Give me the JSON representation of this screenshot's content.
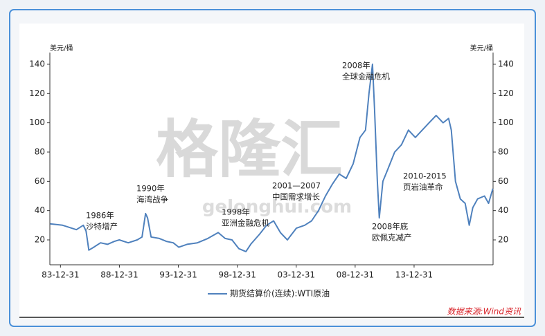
{
  "chart_data": {
    "type": "line",
    "watermark": "格隆汇",
    "watermark_url": "gelonghui.com",
    "ylabel": "美元/桶",
    "y2label": "美元/桶",
    "source": "数据来源:Wind资讯",
    "x": [
      1983.12,
      1984.18,
      1985.35,
      1985.94,
      1986.17,
      1986.41,
      1986.82,
      1987.4,
      1987.99,
      1988.58,
      1988.99,
      1989.75,
      1990.51,
      1990.92,
      1991.22,
      1991.39,
      1991.69,
      1992.39,
      1992.98,
      1993.57,
      1994.04,
      1994.74,
      1995.62,
      1996.5,
      1997.38,
      1997.97,
      1998.55,
      1999.14,
      1999.73,
      2000.14,
      2000.9,
      2001.49,
      2002.08,
      2002.66,
      2003.25,
      2004.01,
      2004.72,
      2005.3,
      2005.89,
      2006.48,
      2007.06,
      2007.65,
      2008.24,
      2008.83,
      2009.41,
      2009.88,
      2010.17,
      2010.47,
      2010.64,
      2010.88,
      2011.05,
      2011.35,
      2011.76,
      2012.35,
      2012.93,
      2013.52,
      2014.11,
      2014.69,
      2015.28,
      2015.87,
      2016.46,
      2016.93,
      2017.16,
      2017.51,
      2017.92,
      2018.33,
      2018.68,
      2018.98,
      2019.39,
      2019.97,
      2020.32,
      2020.68
    ],
    "series": [
      {
        "name": "期货结算价(连续):WTI原油",
        "color": "#4f81bd",
        "values": [
          31,
          30,
          27,
          30,
          26,
          13,
          15,
          18,
          17,
          19,
          20,
          18,
          20,
          22,
          38,
          35,
          22,
          21,
          19,
          18,
          15,
          17,
          18,
          21,
          25,
          21,
          20,
          14,
          12,
          17,
          24,
          30,
          33,
          25,
          20,
          28,
          30,
          33,
          40,
          50,
          58,
          65,
          62,
          72,
          90,
          95,
          120,
          140,
          110,
          60,
          35,
          60,
          68,
          80,
          85,
          95,
          90,
          95,
          100,
          105,
          100,
          103,
          95,
          60,
          48,
          45,
          30,
          42,
          48,
          50,
          45,
          55
        ]
      }
    ],
    "xlim": [
      1983.1,
      2020.7
    ],
    "xticks": [
      {
        "value": 1984,
        "label": "83-12-31"
      },
      {
        "value": 1989,
        "label": "88-12-31"
      },
      {
        "value": 1994,
        "label": "93-12-31"
      },
      {
        "value": 1999,
        "label": "98-12-31"
      },
      {
        "value": 2004,
        "label": "03-12-31"
      },
      {
        "value": 2009,
        "label": "08-12-31"
      },
      {
        "value": 2014,
        "label": "13-12-31"
      }
    ],
    "ylim": [
      3,
      148
    ],
    "yticks": [
      20,
      40,
      60,
      80,
      100,
      120,
      140
    ],
    "y2lim": [
      3,
      148
    ],
    "y2ticks": [
      20,
      40,
      60,
      80,
      100,
      120,
      140
    ],
    "annotations": [
      {
        "title": "1986年",
        "text": "沙特增产"
      },
      {
        "title": "1990年",
        "text": "海湾战争"
      },
      {
        "title": "1998年",
        "text": "亚洲金融危机"
      },
      {
        "title": "2001—2007",
        "text": "中国需求增长"
      },
      {
        "title": "2008年",
        "text": "全球金融危机"
      },
      {
        "title": "2008年底",
        "text": "欧佩克减产"
      },
      {
        "title": "2010-2015",
        "text": "页岩油革命"
      }
    ]
  }
}
